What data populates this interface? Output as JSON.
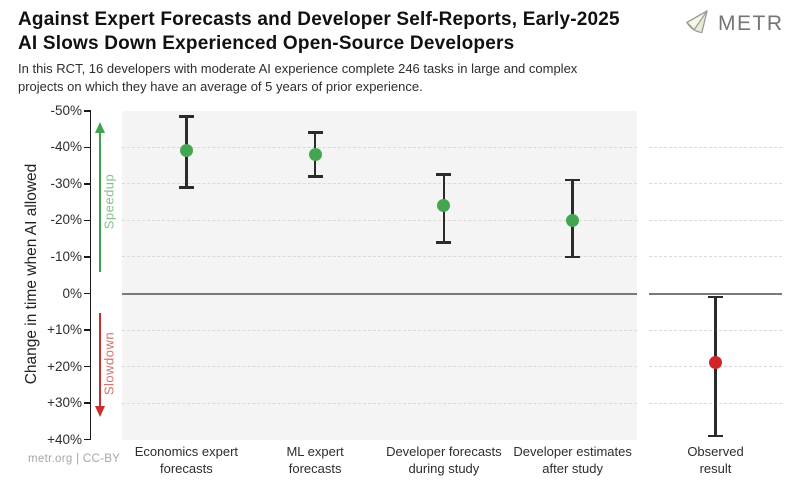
{
  "header": {
    "title_line1": "Against Expert Forecasts and Developer Self-Reports, Early-2025",
    "title_line2": "AI Slows Down Experienced Open-Source Developers",
    "subtitle_line1": "In this RCT, 16 developers with moderate AI experience complete 246 tasks in large and complex",
    "subtitle_line2": "projects on which they have an average of 5 years of prior experience.",
    "logo_text": "METR"
  },
  "footer": {
    "credit": "metr.org  |  CC-BY"
  },
  "chart_data": {
    "type": "scatter",
    "title": "Against Expert Forecasts and Developer Self-Reports, Early-2025 AI Slows Down Experienced Open-Source Developers",
    "subtitle": "In this RCT, 16 developers with moderate AI experience complete 246 tasks in large and complex projects on which they have an average of 5 years of prior experience.",
    "ylabel": "Change in time when AI allowed",
    "unit": "percent change in time when AI allowed",
    "ylim": [
      -50,
      40
    ],
    "y_axis_inverted": true,
    "grid": "horizontal dashed",
    "y_ticks": [
      {
        "value": -50,
        "label": "-50%"
      },
      {
        "value": -40,
        "label": "-40%"
      },
      {
        "value": -30,
        "label": "-30%"
      },
      {
        "value": -20,
        "label": "-20%"
      },
      {
        "value": -10,
        "label": "-10%"
      },
      {
        "value": 0,
        "label": "0%"
      },
      {
        "value": 10,
        "label": "+10%"
      },
      {
        "value": 20,
        "label": "+20%"
      },
      {
        "value": 30,
        "label": "+30%"
      },
      {
        "value": 40,
        "label": "+40%"
      }
    ],
    "annotations": [
      {
        "text": "Speedup",
        "direction": "up",
        "color": "#3fa24d"
      },
      {
        "text": "Slowdown",
        "direction": "down",
        "color": "#c9302c"
      }
    ],
    "points": [
      {
        "label": "Economics expert\nforecasts",
        "value": -39,
        "ci_low": -48.5,
        "ci_high": -29,
        "color": "#44a550",
        "panel": 0
      },
      {
        "label": "ML expert\nforecasts",
        "value": -38,
        "ci_low": -44,
        "ci_high": -32,
        "color": "#44a550",
        "panel": 0
      },
      {
        "label": "Developer forecasts\nduring study",
        "value": -24,
        "ci_low": -32.5,
        "ci_high": -14,
        "color": "#44a550",
        "panel": 0
      },
      {
        "label": "Developer estimates\nafter study",
        "value": -20,
        "ci_low": -31,
        "ci_high": -10,
        "color": "#44a550",
        "panel": 0
      },
      {
        "label": "Observed\nresult",
        "value": 19,
        "ci_low": 1,
        "ci_high": 39,
        "color": "#d42428",
        "panel": 1
      }
    ],
    "colors": {
      "speedup_green": "#44a550",
      "slowdown_red": "#d42428",
      "panel_background": "#f4f4f4",
      "zero_line": "#7a7a7a",
      "error_bar": "#2b2b2b"
    }
  }
}
